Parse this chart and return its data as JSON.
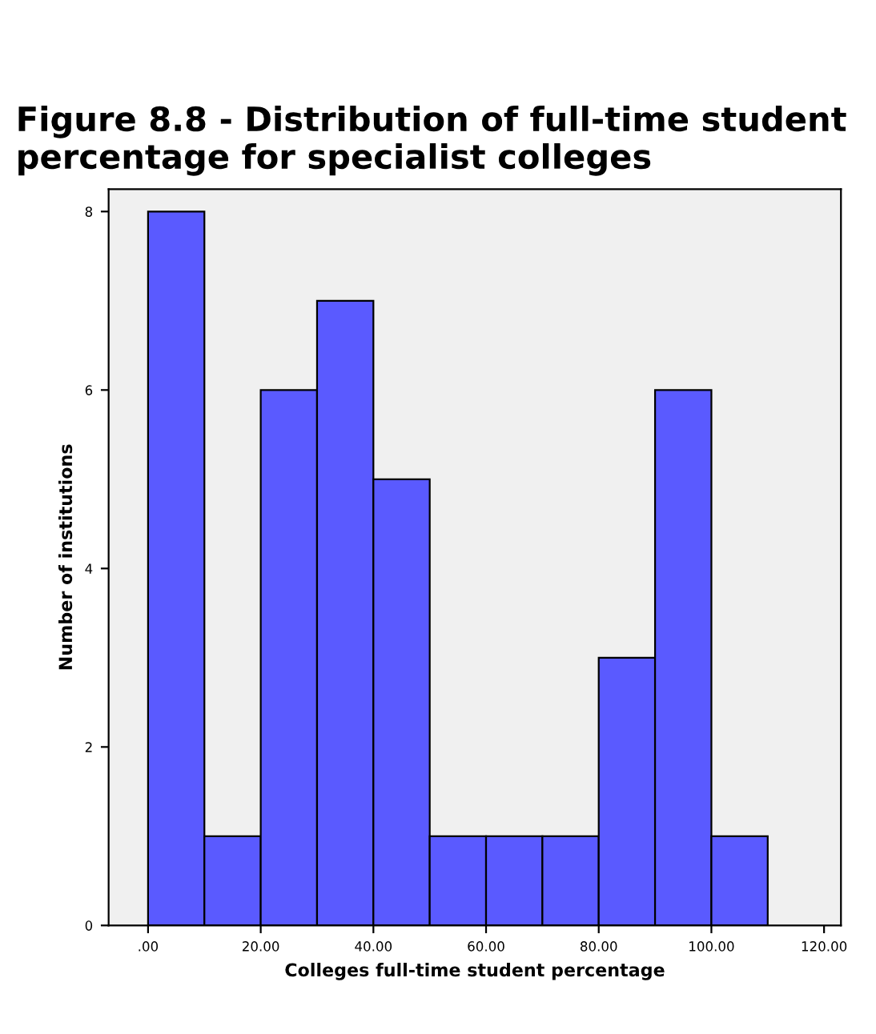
{
  "chart_data": {
    "type": "histogram",
    "title": "Figure 8.8 - Distribution of full-time student percentage for specialist colleges",
    "xlabel": "Colleges full-time student percentage",
    "ylabel": "Number of institutions",
    "bins": [
      0,
      10,
      20,
      30,
      40,
      50,
      60,
      70,
      80,
      90,
      100,
      110
    ],
    "values": [
      8,
      1,
      6,
      7,
      5,
      1,
      1,
      1,
      3,
      6,
      1
    ],
    "color": "#5a5aff",
    "xlim": [
      -7,
      123
    ],
    "ylim": [
      0,
      8.25
    ],
    "xticks": [
      {
        "value": 0,
        "label": ".00"
      },
      {
        "value": 20,
        "label": "20.00"
      },
      {
        "value": 40,
        "label": "40.00"
      },
      {
        "value": 60,
        "label": "60.00"
      },
      {
        "value": 80,
        "label": "80.00"
      },
      {
        "value": 100,
        "label": "100.00"
      },
      {
        "value": 120,
        "label": "120.00"
      }
    ],
    "yticks": [
      0,
      2,
      4,
      6,
      8
    ],
    "grid": false,
    "legend": false
  }
}
